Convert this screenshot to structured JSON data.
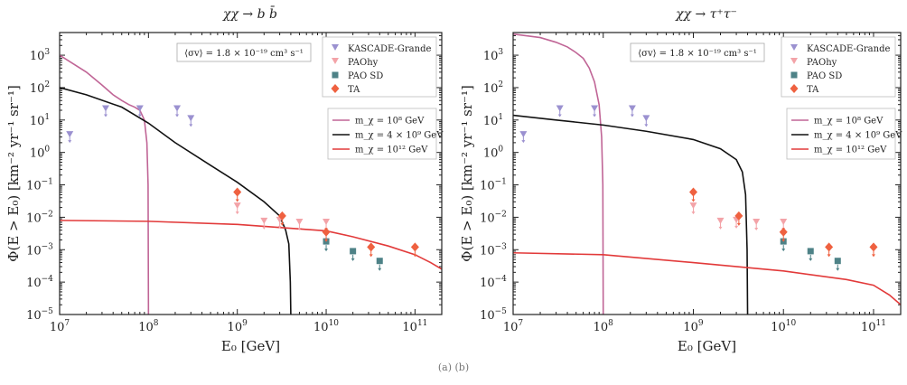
{
  "footer_text": "(a)     (b)",
  "chart_data": [
    {
      "type": "line",
      "title": "χχ → b b̄",
      "xlabel": "E₀ [GeV]",
      "ylabel": "Φ(E > E₀) [km⁻² yr⁻¹ sr⁻¹]",
      "xscale": "log",
      "yscale": "log",
      "xlim": [
        10000000.0,
        200000000000.0
      ],
      "ylim": [
        1e-05,
        5000.0
      ],
      "x_ticks": [
        {
          "value": 10000000.0,
          "base": "10",
          "exp": "7"
        },
        {
          "value": 100000000.0,
          "base": "10",
          "exp": "8"
        },
        {
          "value": 1000000000.0,
          "base": "10",
          "exp": "9"
        },
        {
          "value": 10000000000.0,
          "base": "10",
          "exp": "10"
        },
        {
          "value": 100000000000.0,
          "base": "10",
          "exp": "11"
        }
      ],
      "y_ticks": [
        {
          "value": 1e-05,
          "base": "10",
          "exp": "−5"
        },
        {
          "value": 0.0001,
          "base": "10",
          "exp": "−4"
        },
        {
          "value": 0.001,
          "base": "10",
          "exp": "−3"
        },
        {
          "value": 0.01,
          "base": "10",
          "exp": "−2"
        },
        {
          "value": 0.1,
          "base": "10",
          "exp": "−1"
        },
        {
          "value": 1,
          "base": "10",
          "exp": "0"
        },
        {
          "value": 10,
          "base": "10",
          "exp": "1"
        },
        {
          "value": 100,
          "base": "10",
          "exp": "2"
        },
        {
          "value": 1000,
          "base": "10",
          "exp": "3"
        }
      ],
      "annotation": "⟨σv⟩ = 1.8 × 10⁻¹⁹ cm³ s⁻¹",
      "data_legend": [
        {
          "label": "KASCADE-Grande",
          "marker": "triangle-down",
          "color": "#9b91d0"
        },
        {
          "label": "PAOhy",
          "marker": "triangle-down",
          "color": "#f3a3a8"
        },
        {
          "label": "PAO SD",
          "marker": "square",
          "color": "#4e8287"
        },
        {
          "label": "TA",
          "marker": "diamond",
          "color": "#ef6140"
        }
      ],
      "data_points": [
        {
          "set": "KASCADE-Grande",
          "color": "#9b91d0",
          "marker": "triangle-down",
          "points": [
            [
              13000000.0,
              3.5
            ],
            [
              33000000.0,
              22
            ],
            [
              80000000.0,
              22
            ],
            [
              210000000.0,
              22
            ],
            [
              300000000.0,
              11
            ]
          ]
        },
        {
          "set": "PAOhy",
          "color": "#f3a3a8",
          "marker": "triangle-down",
          "points": [
            [
              1000000000.0,
              0.022
            ],
            [
              2000000000.0,
              0.0075
            ],
            [
              3000000000.0,
              0.008
            ],
            [
              5000000000.0,
              0.007
            ],
            [
              10000000000.0,
              0.007
            ]
          ]
        },
        {
          "set": "PAO SD",
          "color": "#4e8287",
          "marker": "square",
          "points": [
            [
              10000000000.0,
              0.0018
            ],
            [
              20000000000.0,
              0.0009
            ],
            [
              40000000000.0,
              0.00045
            ]
          ]
        },
        {
          "set": "TA",
          "color": "#ef6140",
          "marker": "diamond",
          "points": [
            [
              1000000000.0,
              0.06
            ],
            [
              3200000000.0,
              0.011
            ],
            [
              10000000000.0,
              0.0035
            ],
            [
              32000000000.0,
              0.0012
            ],
            [
              100000000000.0,
              0.0012
            ]
          ]
        }
      ],
      "series_legend": [
        {
          "label": "m_χ = 10⁸ GeV",
          "color": "#c06596"
        },
        {
          "label": "m_χ = 4 × 10⁹ GeV",
          "color": "#111111"
        },
        {
          "label": "m_χ = 10¹² GeV",
          "color": "#e23a3a"
        }
      ],
      "series": [
        {
          "name": "m_χ = 10⁸ GeV",
          "color": "#c06596",
          "points": [
            [
              10000000.0,
              1000
            ],
            [
              20000000.0,
              300
            ],
            [
              30000000.0,
              120
            ],
            [
              40000000.0,
              60
            ],
            [
              50000000.0,
              40
            ],
            [
              60000000.0,
              30
            ],
            [
              70000000.0,
              25
            ],
            [
              80000000.0,
              20
            ],
            [
              90000000.0,
              10
            ],
            [
              96000000.0,
              2
            ],
            [
              99000000.0,
              0.1
            ],
            [
              100000000.0,
              1e-05
            ]
          ]
        },
        {
          "name": "m_χ = 4 × 10⁹ GeV",
          "color": "#111111",
          "points": [
            [
              10000000.0,
              100
            ],
            [
              20000000.0,
              60
            ],
            [
              50000000.0,
              25
            ],
            [
              100000000.0,
              8
            ],
            [
              200000000.0,
              2
            ],
            [
              500000000.0,
              0.4
            ],
            [
              1000000000.0,
              0.12
            ],
            [
              2000000000.0,
              0.03
            ],
            [
              3000000000.0,
              0.011
            ],
            [
              3500000000.0,
              0.004
            ],
            [
              3800000000.0,
              0.0015
            ],
            [
              3950000000.0,
              0.0001
            ],
            [
              4000000000.0,
              1e-05
            ]
          ]
        },
        {
          "name": "m_χ = 10¹² GeV",
          "color": "#e23a3a",
          "points": [
            [
              10000000.0,
              0.008
            ],
            [
              100000000.0,
              0.0075
            ],
            [
              1000000000.0,
              0.006
            ],
            [
              10000000000.0,
              0.0038
            ],
            [
              20000000000.0,
              0.0025
            ],
            [
              50000000000.0,
              0.0013
            ],
            [
              100000000000.0,
              0.0007
            ],
            [
              150000000000.0,
              0.0004
            ],
            [
              200000000000.0,
              0.00025
            ]
          ]
        }
      ]
    },
    {
      "type": "line",
      "title": "χχ → τ⁺τ⁻",
      "xlabel": "E₀ [GeV]",
      "ylabel": "Φ(E > E₀) [km⁻² yr⁻¹ sr⁻¹]",
      "xscale": "log",
      "yscale": "log",
      "xlim": [
        10000000.0,
        200000000000.0
      ],
      "ylim": [
        1e-05,
        5000.0
      ],
      "x_ticks": [
        {
          "value": 10000000.0,
          "base": "10",
          "exp": "7"
        },
        {
          "value": 100000000.0,
          "base": "10",
          "exp": "8"
        },
        {
          "value": 1000000000.0,
          "base": "10",
          "exp": "9"
        },
        {
          "value": 10000000000.0,
          "base": "10",
          "exp": "10"
        },
        {
          "value": 100000000000.0,
          "base": "10",
          "exp": "11"
        }
      ],
      "y_ticks": [
        {
          "value": 1e-05,
          "base": "10",
          "exp": "−5"
        },
        {
          "value": 0.0001,
          "base": "10",
          "exp": "−4"
        },
        {
          "value": 0.001,
          "base": "10",
          "exp": "−3"
        },
        {
          "value": 0.01,
          "base": "10",
          "exp": "−2"
        },
        {
          "value": 0.1,
          "base": "10",
          "exp": "−1"
        },
        {
          "value": 1,
          "base": "10",
          "exp": "0"
        },
        {
          "value": 10,
          "base": "10",
          "exp": "1"
        },
        {
          "value": 100,
          "base": "10",
          "exp": "2"
        },
        {
          "value": 1000,
          "base": "10",
          "exp": "3"
        }
      ],
      "annotation": "⟨σv⟩ = 1.8 × 10⁻¹⁹ cm³ s⁻¹",
      "data_legend": [
        {
          "label": "KASCADE-Grande",
          "marker": "triangle-down",
          "color": "#9b91d0"
        },
        {
          "label": "PAOhy",
          "marker": "triangle-down",
          "color": "#f3a3a8"
        },
        {
          "label": "PAO SD",
          "marker": "square",
          "color": "#4e8287"
        },
        {
          "label": "TA",
          "marker": "diamond",
          "color": "#ef6140"
        }
      ],
      "data_points": [
        {
          "set": "KASCADE-Grande",
          "color": "#9b91d0",
          "marker": "triangle-down",
          "points": [
            [
              13000000.0,
              3.5
            ],
            [
              33000000.0,
              22
            ],
            [
              80000000.0,
              22
            ],
            [
              210000000.0,
              22
            ],
            [
              300000000.0,
              11
            ]
          ]
        },
        {
          "set": "PAOhy",
          "color": "#f3a3a8",
          "marker": "triangle-down",
          "points": [
            [
              1000000000.0,
              0.022
            ],
            [
              2000000000.0,
              0.0075
            ],
            [
              3000000000.0,
              0.008
            ],
            [
              5000000000.0,
              0.007
            ],
            [
              10000000000.0,
              0.007
            ]
          ]
        },
        {
          "set": "PAO SD",
          "color": "#4e8287",
          "marker": "square",
          "points": [
            [
              10000000000.0,
              0.0018
            ],
            [
              20000000000.0,
              0.0009
            ],
            [
              40000000000.0,
              0.00045
            ]
          ]
        },
        {
          "set": "TA",
          "color": "#ef6140",
          "marker": "diamond",
          "points": [
            [
              1000000000.0,
              0.06
            ],
            [
              3200000000.0,
              0.011
            ],
            [
              10000000000.0,
              0.0035
            ],
            [
              32000000000.0,
              0.0012
            ],
            [
              100000000000.0,
              0.0012
            ]
          ]
        }
      ],
      "series_legend": [
        {
          "label": "m_χ = 10⁸ GeV",
          "color": "#c06596"
        },
        {
          "label": "m_χ = 4 × 10⁹ GeV",
          "color": "#111111"
        },
        {
          "label": "m_χ = 10¹² GeV",
          "color": "#e23a3a"
        }
      ],
      "series": [
        {
          "name": "m_χ = 10⁸ GeV",
          "color": "#c06596",
          "points": [
            [
              10000000.0,
              4500
            ],
            [
              20000000.0,
              3500
            ],
            [
              30000000.0,
              2500
            ],
            [
              40000000.0,
              1800
            ],
            [
              50000000.0,
              1200
            ],
            [
              60000000.0,
              800
            ],
            [
              70000000.0,
              400
            ],
            [
              80000000.0,
              150
            ],
            [
              90000000.0,
              30
            ],
            [
              96000000.0,
              3
            ],
            [
              99000000.0,
              0.1
            ],
            [
              100000000.0,
              1e-05
            ]
          ]
        },
        {
          "name": "m_χ = 4 × 10⁹ GeV",
          "color": "#111111",
          "points": [
            [
              10000000.0,
              14
            ],
            [
              30000000.0,
              10
            ],
            [
              100000000.0,
              7
            ],
            [
              300000000.0,
              4.5
            ],
            [
              1000000000.0,
              2.5
            ],
            [
              2000000000.0,
              1.3
            ],
            [
              3000000000.0,
              0.6
            ],
            [
              3500000000.0,
              0.25
            ],
            [
              3800000000.0,
              0.05
            ],
            [
              3950000000.0,
              0.001
            ],
            [
              4000000000.0,
              1e-05
            ]
          ]
        },
        {
          "name": "m_χ = 10¹² GeV",
          "color": "#e23a3a",
          "points": [
            [
              10000000.0,
              0.0008
            ],
            [
              100000000.0,
              0.0007
            ],
            [
              1000000000.0,
              0.0004
            ],
            [
              10000000000.0,
              0.00022
            ],
            [
              50000000000.0,
              0.00012
            ],
            [
              100000000000.0,
              8e-05
            ],
            [
              150000000000.0,
              4e-05
            ],
            [
              200000000000.0,
              2e-05
            ]
          ]
        }
      ]
    }
  ]
}
